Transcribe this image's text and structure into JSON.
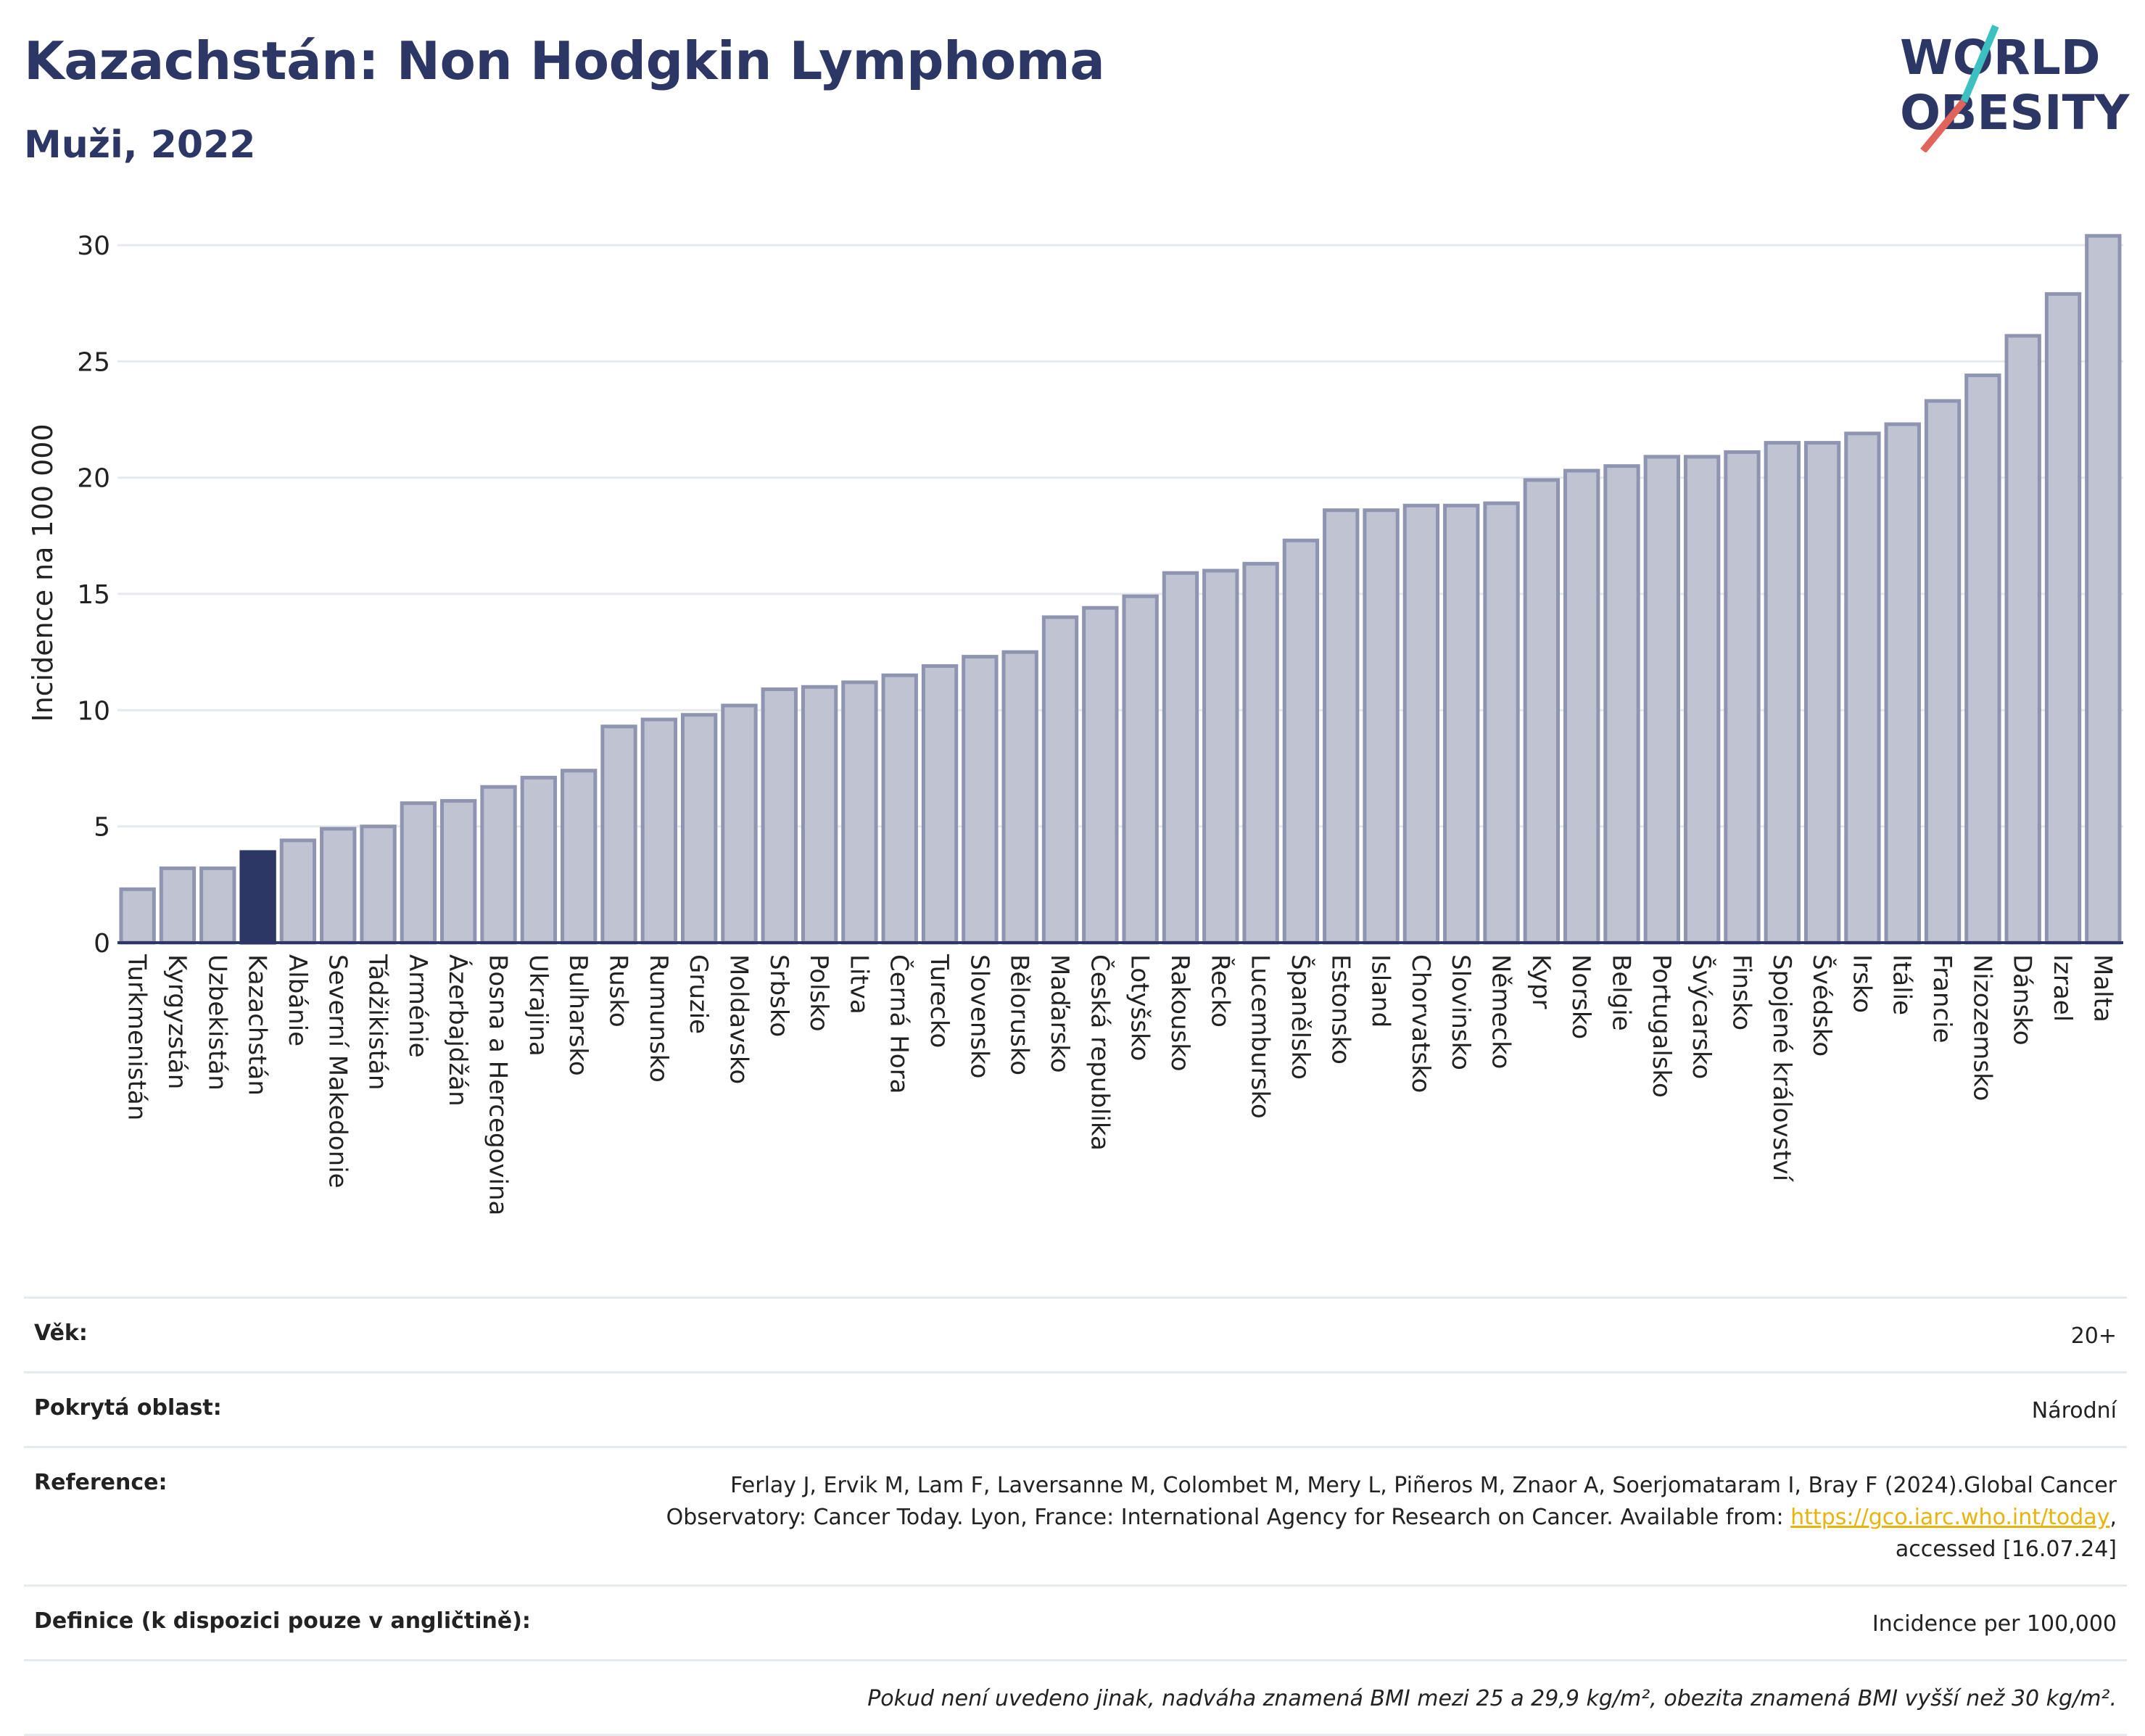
{
  "header": {
    "title": "Kazachstán: Non Hodgkin Lymphoma",
    "subtitle": "Muži, 2022"
  },
  "logo": {
    "line1": "WORLD",
    "line2": "OBESITY",
    "colors": {
      "text": "#2c3766",
      "slash_red": "#e0645c",
      "slash_teal": "#3cc0c0"
    }
  },
  "chart_data": {
    "type": "bar",
    "ylabel": "Incidence na 100 000",
    "ylim": [
      0,
      31
    ],
    "yticks": [
      0,
      5,
      10,
      15,
      20,
      25,
      30
    ],
    "grid": true,
    "highlight": "Kazachstán",
    "colors": {
      "bar": "#bfc3d2",
      "bar_border": "#8f95b0",
      "highlight": "#2c3766",
      "axis": "#2c3766",
      "grid": "#e6e9ef"
    },
    "categories": [
      "Turkmenistán",
      "Kyrgyzstán",
      "Uzbekistán",
      "Kazachstán",
      "Albánie",
      "Severní Makedonie",
      "Tádžikistán",
      "Arménie",
      "Ázerbajdžán",
      "Bosna a Hercegovina",
      "Ukrajina",
      "Bulharsko",
      "Rusko",
      "Rumunsko",
      "Gruzie",
      "Moldavsko",
      "Srbsko",
      "Polsko",
      "Litva",
      "Černá Hora",
      "Turecko",
      "Slovensko",
      "Bělorusko",
      "Maďarsko",
      "Česká republika",
      "Lotyšsko",
      "Rakousko",
      "Řecko",
      "Lucembursko",
      "Španělsko",
      "Estonsko",
      "Island",
      "Chorvatsko",
      "Slovinsko",
      "Německo",
      "Kypr",
      "Norsko",
      "Belgie",
      "Portugalsko",
      "Švýcarsko",
      "Finsko",
      "Spojené království",
      "Švédsko",
      "Irsko",
      "Itálie",
      "Francie",
      "Nizozemsko",
      "Dánsko",
      "Izrael",
      "Malta"
    ],
    "values": [
      2.3,
      3.2,
      3.2,
      3.9,
      4.4,
      4.9,
      5.0,
      6.0,
      6.1,
      6.7,
      7.1,
      7.4,
      9.3,
      9.6,
      9.8,
      10.2,
      10.9,
      11.0,
      11.2,
      11.5,
      11.9,
      12.3,
      12.5,
      14.0,
      14.4,
      14.9,
      15.9,
      16.0,
      16.3,
      17.3,
      18.6,
      18.6,
      18.8,
      18.8,
      18.9,
      19.9,
      20.3,
      20.5,
      20.9,
      20.9,
      21.1,
      21.5,
      21.5,
      21.9,
      22.3,
      23.3,
      24.4,
      26.1,
      27.9,
      30.4
    ]
  },
  "info": {
    "age_label": "Věk:",
    "age_value": "20+",
    "coverage_label": "Pokrytá oblast:",
    "coverage_value": "Národní",
    "reference_label": "Reference:",
    "reference_line1": "Ferlay J, Ervik M, Lam F, Laversanne M, Colombet M, Mery L, Piñeros M, Znaor A, Soerjomataram I, Bray F (2024).Global Cancer",
    "reference_line2": "Observatory: Cancer Today. Lyon, France: International Agency for Research on Cancer. Available from:",
    "reference_link": "https://gco.iarc.who.int/today",
    "reference_line2_end": ",",
    "reference_line3": "accessed [16.07.24]",
    "definition_label": "Definice (k dispozici pouze v angličtině):",
    "definition_value": "Incidence per 100,000",
    "note": "Pokud není uvedeno jinak, nadváha znamená BMI mezi 25 a 29,9 kg/m², obezita znamená BMI vyšší než 30 kg/m²."
  }
}
